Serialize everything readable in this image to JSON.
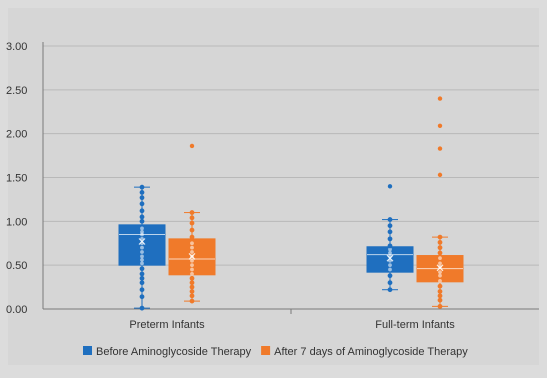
{
  "chart_data": {
    "type": "box",
    "title": "",
    "xlabel": "",
    "ylabel": "",
    "ylim": [
      0,
      3
    ],
    "y_ticks": [
      "0.00",
      "0.50",
      "1.00",
      "1.50",
      "2.00",
      "2.50",
      "3.00"
    ],
    "grid": true,
    "legend_position": "bottom",
    "categories": [
      "Preterm Infants",
      "Full-term Infants"
    ],
    "series": [
      {
        "name": "Before Aminoglycoside Therapy",
        "color": "#1f6fbf",
        "boxes": [
          {
            "category": "Preterm Infants",
            "min": 0.01,
            "q1": 0.5,
            "median": 0.85,
            "q3": 0.96,
            "max": 1.39,
            "mean": 0.77,
            "outliers": [],
            "points": [
              0.01,
              0.14,
              0.22,
              0.3,
              0.35,
              0.4,
              0.46,
              0.52,
              0.56,
              0.6,
              0.65,
              0.7,
              0.75,
              0.8,
              0.85,
              0.88,
              0.92,
              1.0,
              1.05,
              1.12,
              1.2,
              1.27,
              1.33,
              1.39
            ]
          },
          {
            "category": "Full-term Infants",
            "min": 0.22,
            "q1": 0.42,
            "median": 0.62,
            "q3": 0.71,
            "max": 1.02,
            "mean": 0.58,
            "outliers": [
              1.4
            ],
            "points": [
              0.22,
              0.3,
              0.38,
              0.45,
              0.5,
              0.55,
              0.6,
              0.64,
              0.68,
              0.72,
              0.8,
              0.88,
              0.95,
              1.02
            ]
          }
        ]
      },
      {
        "name": "After 7 days of Aminoglycoside Therapy",
        "color": "#f07a2a",
        "boxes": [
          {
            "category": "Preterm Infants",
            "min": 0.09,
            "q1": 0.39,
            "median": 0.57,
            "q3": 0.8,
            "max": 1.1,
            "mean": 0.6,
            "outliers": [
              1.86
            ],
            "points": [
              0.09,
              0.15,
              0.2,
              0.25,
              0.3,
              0.35,
              0.4,
              0.45,
              0.5,
              0.55,
              0.6,
              0.65,
              0.7,
              0.75,
              0.82,
              0.9,
              0.98,
              1.04,
              1.1
            ]
          },
          {
            "category": "Full-term Infants",
            "min": 0.03,
            "q1": 0.31,
            "median": 0.46,
            "q3": 0.61,
            "max": 0.82,
            "mean": 0.47,
            "outliers": [
              1.53,
              1.83,
              2.09,
              2.4
            ],
            "points": [
              0.03,
              0.1,
              0.15,
              0.2,
              0.26,
              0.32,
              0.38,
              0.42,
              0.48,
              0.52,
              0.58,
              0.64,
              0.7,
              0.76,
              0.82
            ]
          }
        ]
      }
    ]
  }
}
